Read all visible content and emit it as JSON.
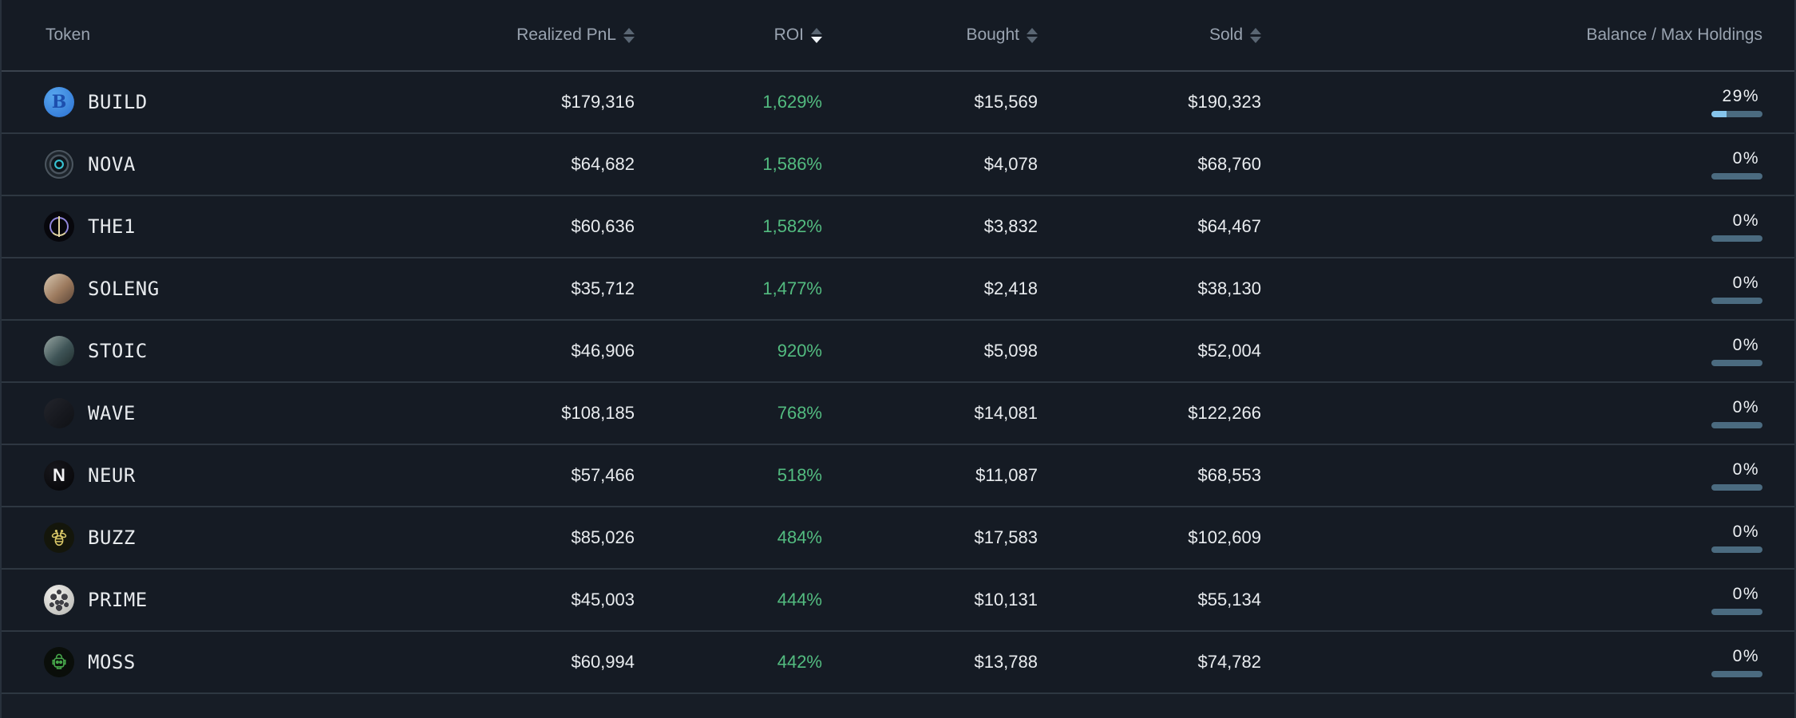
{
  "colors": {
    "background": "#151b24",
    "row_divider": "#2e3741",
    "header_divider": "#3a424d",
    "header_text": "#99a3b0",
    "value_text": "#e9ecef",
    "roi_green": "#53bc80",
    "bar_track": "#4b6b80",
    "bar_fill": "#86c5ec",
    "arrow_inactive": "#5a6673",
    "arrow_active": "#eef2f6"
  },
  "table": {
    "columns": [
      {
        "key": "token",
        "label": "Token",
        "sortable": false,
        "sort": "none"
      },
      {
        "key": "realized_pnl",
        "label": "Realized PnL",
        "sortable": true,
        "sort": "none"
      },
      {
        "key": "roi",
        "label": "ROI",
        "sortable": true,
        "sort": "desc"
      },
      {
        "key": "bought",
        "label": "Bought",
        "sortable": true,
        "sort": "none"
      },
      {
        "key": "sold",
        "label": "Sold",
        "sortable": true,
        "sort": "none"
      },
      {
        "key": "balance",
        "label": "Balance / Max Holdings",
        "sortable": false,
        "sort": "none"
      }
    ],
    "rows": [
      {
        "token": "BUILD",
        "realized_pnl": "$179,316",
        "roi": "1,629%",
        "bought": "$15,569",
        "sold": "$190,323",
        "balance_pct": "29%",
        "balance_fill": 29,
        "icon": {
          "kind": "letter",
          "glyph": "B",
          "serif": true,
          "c1": "#58a7ee",
          "c2": "#2b70d2",
          "fg": "#1d4fae"
        }
      },
      {
        "token": "NOVA",
        "realized_pnl": "$64,682",
        "roi": "1,586%",
        "bought": "$4,078",
        "sold": "$68,760",
        "balance_pct": "0%",
        "balance_fill": 0,
        "icon": {
          "kind": "ring",
          "c1": "#4a545e",
          "c2": "#1d242b",
          "core": "#38c4d4"
        }
      },
      {
        "token": "THE1",
        "realized_pnl": "$60,636",
        "roi": "1,582%",
        "bought": "$3,832",
        "sold": "$64,467",
        "balance_pct": "0%",
        "balance_fill": 0,
        "icon": {
          "kind": "phi",
          "bg": "#07070c",
          "ring": "#9187dc",
          "line": "#e2d5a4"
        }
      },
      {
        "token": "SOLENG",
        "realized_pnl": "$35,712",
        "roi": "1,477%",
        "bought": "$2,418",
        "sold": "$38,130",
        "balance_pct": "0%",
        "balance_fill": 0,
        "icon": {
          "kind": "photo",
          "c1": "#d8c9b2",
          "c2": "#9c7a5e",
          "c3": "#5a4436"
        }
      },
      {
        "token": "STOIC",
        "realized_pnl": "$46,906",
        "roi": "920%",
        "bought": "$5,098",
        "sold": "$52,004",
        "balance_pct": "0%",
        "balance_fill": 0,
        "icon": {
          "kind": "photo",
          "c1": "#9aa8a4",
          "c2": "#3f5457",
          "c3": "#1f2d2c"
        }
      },
      {
        "token": "WAVE",
        "realized_pnl": "$108,185",
        "roi": "768%",
        "bought": "$14,081",
        "sold": "$122,266",
        "balance_pct": "0%",
        "balance_fill": 0,
        "icon": {
          "kind": "photo",
          "c1": "#23252c",
          "c2": "#17191f",
          "c3": "#0f1115"
        }
      },
      {
        "token": "NEUR",
        "realized_pnl": "$57,466",
        "roi": "518%",
        "bought": "$11,087",
        "sold": "$68,553",
        "balance_pct": "0%",
        "balance_fill": 0,
        "icon": {
          "kind": "letter",
          "glyph": "N",
          "serif": false,
          "c1": "#17171c",
          "c2": "#050507",
          "fg": "#f3f3f5"
        }
      },
      {
        "token": "BUZZ",
        "realized_pnl": "$85,026",
        "roi": "484%",
        "bought": "$17,583",
        "sold": "$102,609",
        "balance_pct": "0%",
        "balance_fill": 0,
        "icon": {
          "kind": "bee",
          "bg": "#14160b",
          "fg": "#d9c868"
        }
      },
      {
        "token": "PRIME",
        "realized_pnl": "$45,003",
        "roi": "444%",
        "bought": "$10,131",
        "sold": "$55,134",
        "balance_pct": "0%",
        "balance_fill": 0,
        "icon": {
          "kind": "spots",
          "c1": "#f1f0ed",
          "c2": "#b3b3ae",
          "fg": "#3f3f45"
        }
      },
      {
        "token": "MOSS",
        "realized_pnl": "$60,994",
        "roi": "442%",
        "bought": "$13,788",
        "sold": "$74,782",
        "balance_pct": "0%",
        "balance_fill": 0,
        "icon": {
          "kind": "robot",
          "bg": "#0a0e0a",
          "fg": "#46a54a"
        }
      }
    ]
  }
}
